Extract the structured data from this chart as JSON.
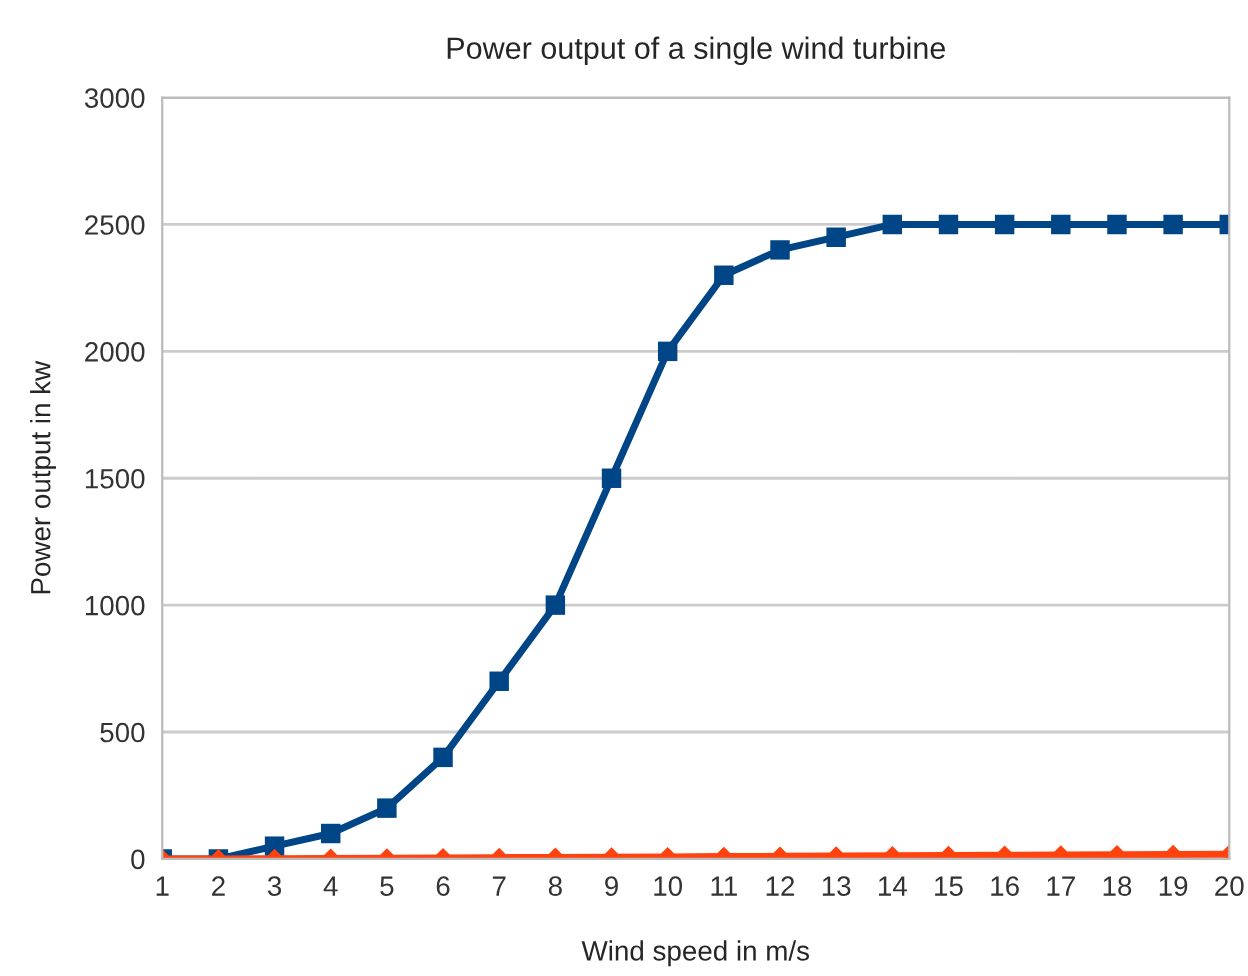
{
  "chart_data": {
    "type": "line",
    "title": "Power output of a single wind turbine",
    "xlabel": "Wind speed in m/s",
    "ylabel": "Power output in kw",
    "categories": [
      "1",
      "2",
      "3",
      "4",
      "5",
      "6",
      "7",
      "8",
      "9",
      "10",
      "11",
      "12",
      "13",
      "14",
      "15",
      "16",
      "17",
      "18",
      "19",
      "20"
    ],
    "series": [
      {
        "color": "#004586",
        "marker": "square",
        "values": [
          0,
          0,
          50,
          100,
          200,
          400,
          700,
          1000,
          1500,
          2000,
          2300,
          2400,
          2450,
          2500,
          2500,
          2500,
          2500,
          2500,
          2500,
          2500
        ]
      },
      {
        "color": "#ff420e",
        "marker": "diamond",
        "values": [
          0,
          0,
          1,
          2,
          3,
          4,
          5,
          6,
          7,
          8,
          9,
          10,
          11,
          12,
          13,
          14,
          15,
          16,
          17,
          18
        ]
      }
    ],
    "ylim": [
      0,
      3000
    ],
    "yticks": [
      0,
      500,
      1000,
      1500,
      2000,
      2500,
      3000
    ],
    "grid": "y",
    "line_style": "solid"
  }
}
